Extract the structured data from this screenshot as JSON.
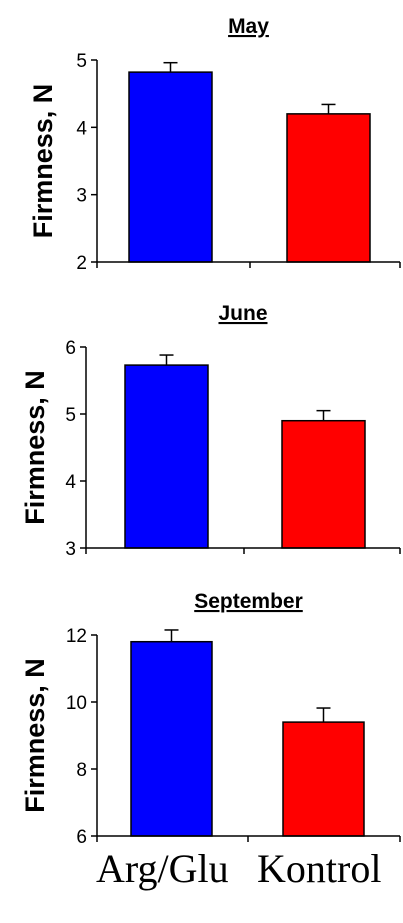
{
  "chart_data": [
    {
      "type": "bar",
      "title": "May",
      "ylabel": "Firmness, N",
      "xlabel": "",
      "categories": [
        "Arg/Glu",
        "Kontrol"
      ],
      "values": [
        4.82,
        4.2
      ],
      "errors": [
        0.14,
        0.14
      ],
      "ylim": [
        2,
        5
      ],
      "yticks": [
        2,
        3,
        4,
        5
      ],
      "grid": false
    },
    {
      "type": "bar",
      "title": "June",
      "ylabel": "Firmness, N",
      "xlabel": "",
      "categories": [
        "Arg/Glu",
        "Kontrol"
      ],
      "values": [
        5.73,
        4.9
      ],
      "errors": [
        0.15,
        0.15
      ],
      "ylim": [
        3,
        6
      ],
      "yticks": [
        3,
        4,
        5,
        6
      ],
      "grid": false
    },
    {
      "type": "bar",
      "title": "September",
      "ylabel": "Firmness, N",
      "xlabel": "",
      "categories": [
        "Arg/Glu",
        "Kontrol"
      ],
      "values": [
        11.8,
        9.4
      ],
      "errors": [
        0.35,
        0.42
      ],
      "ylim": [
        6,
        12
      ],
      "yticks": [
        6,
        8,
        10,
        12
      ],
      "grid": false
    }
  ],
  "category_labels": [
    "Arg/Glu",
    "Kontrol"
  ],
  "colors": {
    "bar_1": "#0000FF",
    "bar_2": "#FF0000",
    "axis": "#000000"
  }
}
